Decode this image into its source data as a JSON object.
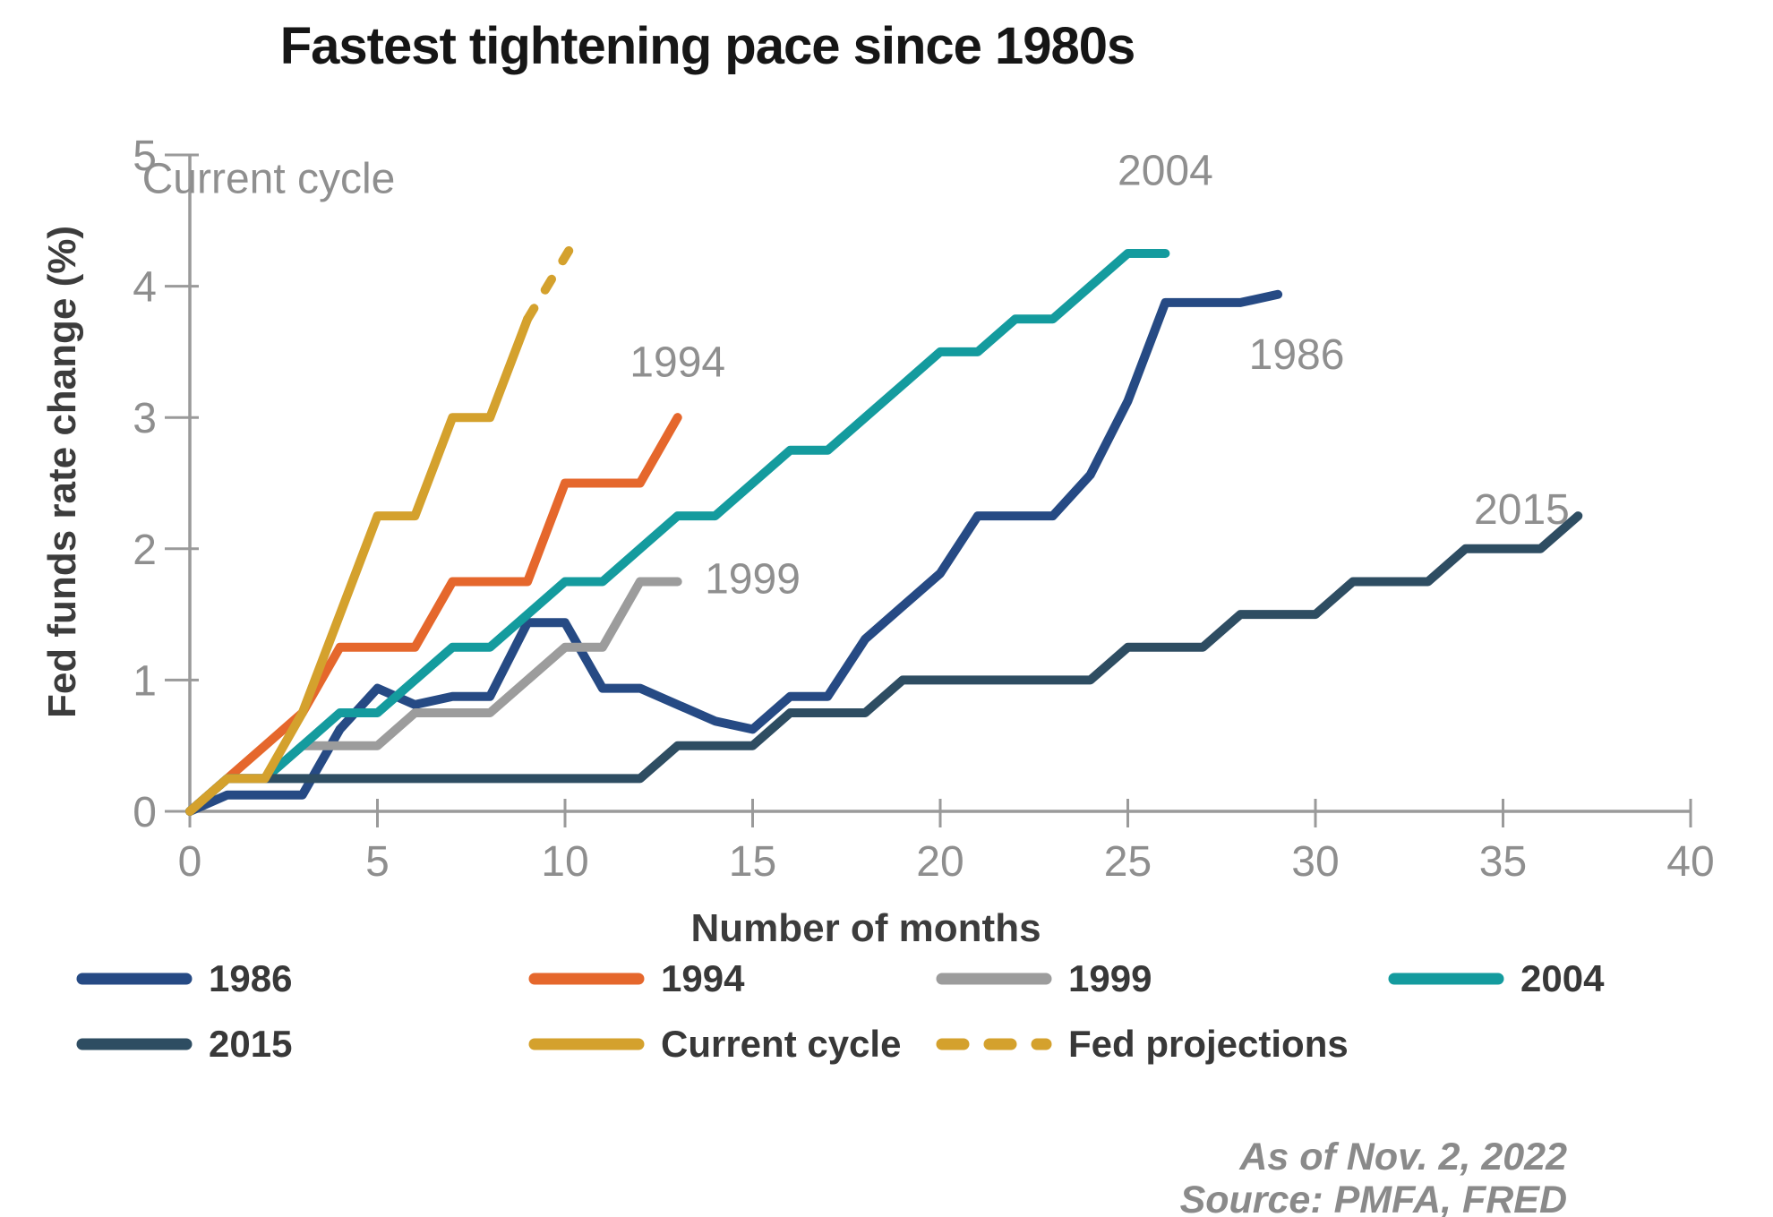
{
  "title": "Fastest tightening pace since 1980s",
  "chart_data": {
    "type": "line",
    "title": "Fastest tightening pace since 1980s",
    "xlabel": "Number of months",
    "ylabel": "Fed funds rate change (%)",
    "xlim": [
      0,
      40
    ],
    "ylim": [
      0,
      5
    ],
    "xticks": [
      0,
      5,
      10,
      15,
      20,
      25,
      30,
      35,
      40
    ],
    "yticks": [
      0,
      1,
      2,
      3,
      4,
      5
    ],
    "grid": false,
    "legend_position": "bottom",
    "x_unit": "months since cycle start, one point per month",
    "series": [
      {
        "name": "1986",
        "color": "#264A84",
        "style": "solid",
        "values": [
          0,
          0.125,
          0.125,
          0.125,
          0.625,
          0.9375,
          0.8125,
          0.875,
          0.875,
          1.4375,
          1.4375,
          0.9375,
          0.9375,
          0.8125,
          0.6875,
          0.625,
          0.875,
          0.875,
          1.3125,
          1.5625,
          1.8125,
          2.25,
          2.25,
          2.25,
          2.5625,
          3.125,
          3.875,
          3.875,
          3.875,
          3.9375
        ]
      },
      {
        "name": "1994",
        "color": "#E5672C",
        "style": "solid",
        "values": [
          0,
          0.25,
          0.5,
          0.75,
          1.25,
          1.25,
          1.25,
          1.75,
          1.75,
          1.75,
          2.5,
          2.5,
          2.5,
          3.0
        ]
      },
      {
        "name": "1999",
        "color": "#9C9C9C",
        "style": "solid",
        "values": [
          0,
          0.25,
          0.25,
          0.5,
          0.5,
          0.5,
          0.75,
          0.75,
          0.75,
          1.0,
          1.25,
          1.25,
          1.75,
          1.75
        ]
      },
      {
        "name": "2004",
        "color": "#149B9E",
        "style": "solid",
        "values": [
          0,
          0.25,
          0.25,
          0.5,
          0.75,
          0.75,
          1.0,
          1.25,
          1.25,
          1.5,
          1.75,
          1.75,
          2.0,
          2.25,
          2.25,
          2.5,
          2.75,
          2.75,
          3.0,
          3.25,
          3.5,
          3.5,
          3.75,
          3.75,
          4.0,
          4.25,
          4.25
        ]
      },
      {
        "name": "2015",
        "color": "#2E4D62",
        "style": "solid",
        "values": [
          0,
          0.25,
          0.25,
          0.25,
          0.25,
          0.25,
          0.25,
          0.25,
          0.25,
          0.25,
          0.25,
          0.25,
          0.25,
          0.5,
          0.5,
          0.5,
          0.75,
          0.75,
          0.75,
          1.0,
          1.0,
          1.0,
          1.0,
          1.0,
          1.0,
          1.25,
          1.25,
          1.25,
          1.5,
          1.5,
          1.5,
          1.75,
          1.75,
          1.75,
          2.0,
          2.0,
          2.0,
          2.25
        ]
      },
      {
        "name": "Current cycle",
        "color": "#D4A12D",
        "style": "solid",
        "values": [
          0,
          0.25,
          0.25,
          0.75,
          1.5,
          2.25,
          2.25,
          3.0,
          3.0,
          3.75
        ]
      },
      {
        "name": "Fed projections",
        "color": "#D4A12D",
        "style": "dashed",
        "x": [
          9,
          10.1
        ],
        "values": [
          3.75,
          4.27
        ]
      }
    ],
    "annotations": [
      {
        "text": "Current cycle",
        "x": 2.1,
        "y": 4.82
      },
      {
        "text": "1994",
        "x": 13.0,
        "y": 3.42
      },
      {
        "text": "1999",
        "x": 15.0,
        "y": 1.77
      },
      {
        "text": "2004",
        "x": 26.0,
        "y": 4.88
      },
      {
        "text": "1986",
        "x": 29.5,
        "y": 3.48
      },
      {
        "text": "2015",
        "x": 35.5,
        "y": 2.3
      }
    ]
  },
  "footnote": {
    "as_of": "As of Nov. 2, 2022",
    "source": "Source: PMFA, FRED"
  },
  "colors": {
    "background": "#FFFFFF",
    "axis": "#9A9A9A",
    "tick_label": "#8E8E8E",
    "annotation": "#8F8F8F",
    "title": "#161616",
    "axis_title": "#3C3C3C",
    "footnote": "#8A8A8A"
  }
}
